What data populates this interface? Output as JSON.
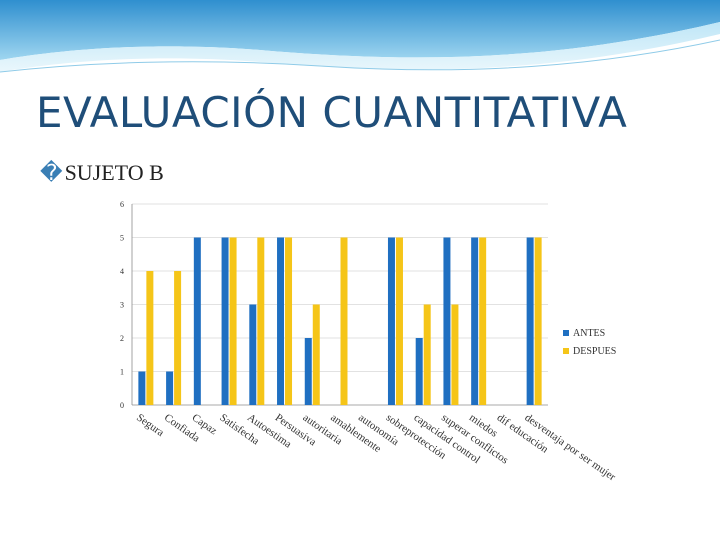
{
  "slide": {
    "title": "EVALUACIÓN CUANTITATIVA",
    "subtitle_bullet": "�",
    "subtitle": "SUJETO B"
  },
  "colors": {
    "antes": "#1f6fc1",
    "despues": "#f5c518",
    "title": "#1f4e79",
    "banner_top": "#2f8fcf",
    "banner_bottom": "#cfeaf7"
  },
  "chart_data": {
    "type": "bar",
    "title": "",
    "xlabel": "",
    "ylabel": "",
    "ylim": [
      0,
      6
    ],
    "yticks": [
      0,
      1,
      2,
      3,
      4,
      5,
      6
    ],
    "legend": "right",
    "categories": [
      "Segura",
      "Confiada",
      "Capaz",
      "Satisfecha",
      "Autoestima",
      "Persuasiva",
      "autoritaria",
      "amablemente",
      "autonomía",
      "sobreprotección",
      "capacidad control",
      "superar conflictos",
      "miedos",
      "dif educación",
      "desventaja por ser mujer"
    ],
    "series": [
      {
        "name": "ANTES",
        "values": [
          1,
          1,
          5,
          5,
          3,
          5,
          2,
          0,
          0,
          5,
          2,
          5,
          5,
          0,
          5
        ]
      },
      {
        "name": "DESPUES",
        "values": [
          4,
          4,
          0,
          5,
          5,
          5,
          3,
          5,
          0,
          5,
          3,
          3,
          5,
          0,
          5
        ]
      }
    ]
  }
}
